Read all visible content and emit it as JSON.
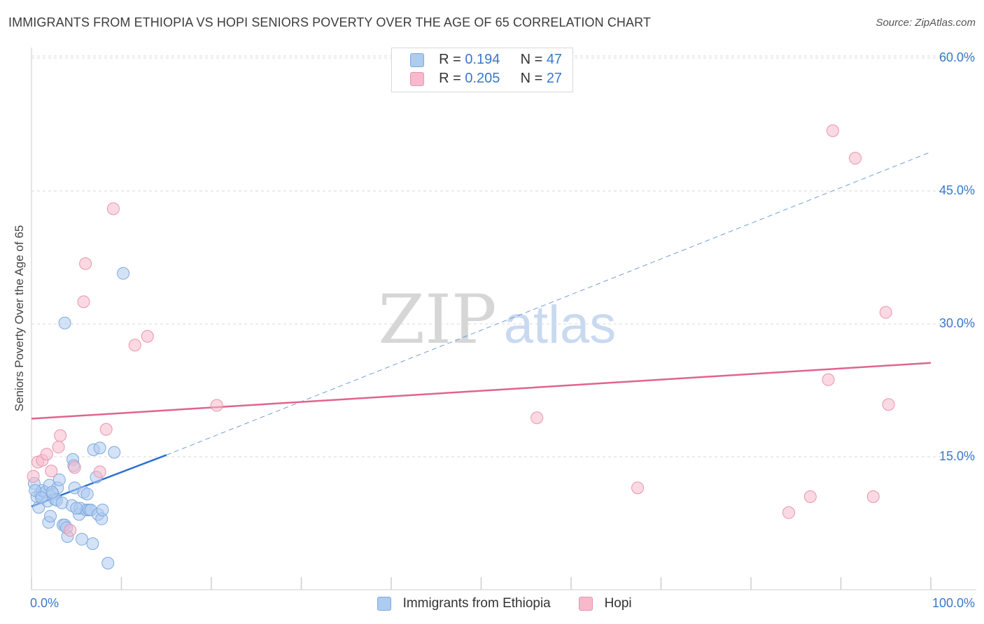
{
  "title": "IMMIGRANTS FROM ETHIOPIA VS HOPI SENIORS POVERTY OVER THE AGE OF 65 CORRELATION CHART",
  "source": "Source: ZipAtlas.com",
  "watermark": {
    "zip": "ZIP",
    "atlas": "atlas"
  },
  "legend_top": {
    "rows": [
      {
        "r_label": "R = ",
        "r_value": "0.194",
        "n_label": "N = ",
        "n_value": "47",
        "color": "#aecbf0"
      },
      {
        "r_label": "R = ",
        "r_value": "0.205",
        "n_label": "N = ",
        "n_value": "27",
        "color": "#f7b9cb"
      }
    ]
  },
  "bottom_legend": [
    {
      "label": "Immigrants from Ethiopia",
      "color": "#aecbf0"
    },
    {
      "label": "Hopi",
      "color": "#f7b9cb"
    }
  ],
  "chart_data": {
    "type": "scatter",
    "title": "IMMIGRANTS FROM ETHIOPIA VS HOPI SENIORS POVERTY OVER THE AGE OF 65 CORRELATION CHART",
    "xlabel": "",
    "ylabel": "Seniors Poverty Over the Age of 65",
    "xlim": [
      0,
      100
    ],
    "ylim": [
      0,
      62
    ],
    "x_tick_labels": [
      {
        "value": 0,
        "label": "0.0%"
      },
      {
        "value": 100,
        "label": "100.0%"
      }
    ],
    "y_tick_labels": [
      {
        "value": 15,
        "label": "15.0%"
      },
      {
        "value": 30,
        "label": "30.0%"
      },
      {
        "value": 45,
        "label": "45.0%"
      },
      {
        "value": 60,
        "label": "60.0%"
      }
    ],
    "series": [
      {
        "name": "Immigrants from Ethiopia",
        "color": "#aecbf0",
        "edge": "#7fa9dd",
        "line_color": "#2d6fce",
        "trend": {
          "x0": 0,
          "y0": 9.4,
          "x1": 15,
          "y1": 15.2,
          "dash_to_x": 100,
          "dash_to_y": 49.4
        },
        "points": [
          [
            0.3,
            12.0
          ],
          [
            0.6,
            10.5
          ],
          [
            0.8,
            9.3
          ],
          [
            1.0,
            10.8
          ],
          [
            1.2,
            11.2
          ],
          [
            1.5,
            11.0
          ],
          [
            1.8,
            10.0
          ],
          [
            2.0,
            11.8
          ],
          [
            1.9,
            7.6
          ],
          [
            2.1,
            8.3
          ],
          [
            2.4,
            10.8
          ],
          [
            2.6,
            10.2
          ],
          [
            2.8,
            10.1
          ],
          [
            2.9,
            11.5
          ],
          [
            3.1,
            12.4
          ],
          [
            3.4,
            9.8
          ],
          [
            3.5,
            7.3
          ],
          [
            3.7,
            7.3
          ],
          [
            4.0,
            6.0
          ],
          [
            3.9,
            7.0
          ],
          [
            4.5,
            9.5
          ],
          [
            4.6,
            14.7
          ],
          [
            4.7,
            14.0
          ],
          [
            4.8,
            11.5
          ],
          [
            5.3,
            8.5
          ],
          [
            5.4,
            9.2
          ],
          [
            5.6,
            5.7
          ],
          [
            5.8,
            11.0
          ],
          [
            6.1,
            9.0
          ],
          [
            6.2,
            10.8
          ],
          [
            6.4,
            9.0
          ],
          [
            6.6,
            9.0
          ],
          [
            6.8,
            5.2
          ],
          [
            6.9,
            15.8
          ],
          [
            7.2,
            12.7
          ],
          [
            7.4,
            8.5
          ],
          [
            7.6,
            16.0
          ],
          [
            7.8,
            8.0
          ],
          [
            7.9,
            9.0
          ],
          [
            8.5,
            3.0
          ],
          [
            9.2,
            15.5
          ],
          [
            10.2,
            35.7
          ],
          [
            3.7,
            30.1
          ],
          [
            0.4,
            11.2
          ],
          [
            1.1,
            10.4
          ],
          [
            2.3,
            11.0
          ],
          [
            5.0,
            9.2
          ]
        ]
      },
      {
        "name": "Hopi",
        "color": "#f7b9cb",
        "edge": "#e994ad",
        "line_color": "#e0648d",
        "trend": {
          "x0": 0,
          "y0": 19.3,
          "x1": 100,
          "y1": 25.6
        },
        "points": [
          [
            0.2,
            12.8
          ],
          [
            0.7,
            14.4
          ],
          [
            1.2,
            14.6
          ],
          [
            1.7,
            15.3
          ],
          [
            2.2,
            13.4
          ],
          [
            3.0,
            16.1
          ],
          [
            3.2,
            17.4
          ],
          [
            4.3,
            6.7
          ],
          [
            4.8,
            13.8
          ],
          [
            5.8,
            32.5
          ],
          [
            6.0,
            36.8
          ],
          [
            7.6,
            13.3
          ],
          [
            8.3,
            18.1
          ],
          [
            9.1,
            43.0
          ],
          [
            11.5,
            27.6
          ],
          [
            12.9,
            28.6
          ],
          [
            20.6,
            20.8
          ],
          [
            56.2,
            19.4
          ],
          [
            67.4,
            11.5
          ],
          [
            84.2,
            8.7
          ],
          [
            86.6,
            10.5
          ],
          [
            88.6,
            23.7
          ],
          [
            89.1,
            51.8
          ],
          [
            91.6,
            48.7
          ],
          [
            93.6,
            10.5
          ],
          [
            95.0,
            31.3
          ],
          [
            95.3,
            20.9
          ]
        ]
      }
    ]
  }
}
